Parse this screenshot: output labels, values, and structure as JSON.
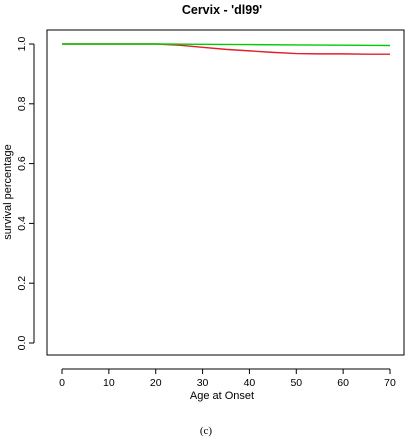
{
  "chart_data": {
    "type": "line",
    "title": "Cervix - 'dl99'",
    "xlabel": "Age at Onset",
    "ylabel": "survival percentage",
    "xlim": [
      0,
      70
    ],
    "ylim": [
      0.0,
      1.0
    ],
    "x_ticks": [
      "0",
      "10",
      "20",
      "30",
      "40",
      "50",
      "60",
      "70"
    ],
    "y_ticks": [
      "0.0",
      "0.2",
      "0.4",
      "0.6",
      "0.8",
      "1.0"
    ],
    "grid": false,
    "series": [
      {
        "color": "#00cc00",
        "x": [
          0,
          20,
          30,
          40,
          50,
          60,
          70
        ],
        "y": [
          1.0,
          1.0,
          0.999,
          0.998,
          0.997,
          0.996,
          0.995
        ]
      },
      {
        "color": "#e0202a",
        "x": [
          0,
          20,
          25,
          30,
          35,
          40,
          45,
          50,
          55,
          60,
          65,
          70
        ],
        "y": [
          1.0,
          1.0,
          0.996,
          0.989,
          0.982,
          0.977,
          0.972,
          0.968,
          0.967,
          0.967,
          0.966,
          0.966
        ]
      }
    ]
  },
  "caption": "(c)"
}
